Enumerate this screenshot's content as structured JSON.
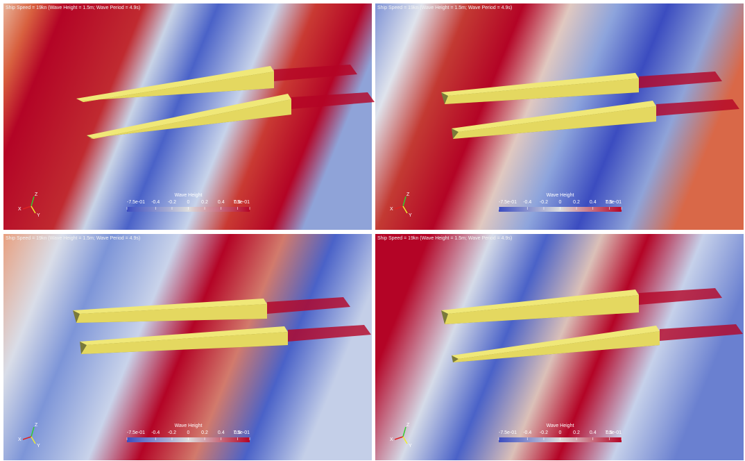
{
  "panels": [
    {
      "title": "Ship Speed = 19kn (Wave Height = 1.5m; Wave Period = 4.9s)",
      "axes": {
        "x": "X",
        "y": "Y",
        "z": "Z"
      },
      "colorbar": {
        "title": "Wave Height",
        "ticks": [
          "-7.5e-01",
          "-0.4",
          "-0.2",
          "0",
          "0.2",
          "0.4",
          "0.6",
          "7.5e-01"
        ]
      }
    },
    {
      "title": "Ship Speed = 19kn (Wave Height = 1.5m; Wave Period = 4.9s)",
      "axes": {
        "x": "X",
        "y": "Y",
        "z": "Z"
      },
      "colorbar": {
        "title": "Wave Height",
        "ticks": [
          "-7.5e-01",
          "-0.4",
          "-0.2",
          "0",
          "0.2",
          "0.4",
          "0.6",
          "7.5e-01"
        ]
      }
    },
    {
      "title": "Ship Speed = 19kn (Wave Height = 1.5m; Wave Period = 4.9s)",
      "axes": {
        "x": "X",
        "y": "Y",
        "z": "Z"
      },
      "colorbar": {
        "title": "Wave Height",
        "ticks": [
          "-7.5e-01",
          "-0.4",
          "-0.2",
          "0",
          "0.2",
          "0.4",
          "0.6",
          "7.5e-01"
        ]
      }
    },
    {
      "title": "Ship Speed = 19kn (Wave Height = 1.5m; Wave Period = 4.9s)",
      "axes": {
        "x": "X",
        "y": "Y",
        "z": "Z"
      },
      "colorbar": {
        "title": "Wave Height",
        "ticks": [
          "-7.5e-01",
          "-0.4",
          "-0.2",
          "0",
          "0.2",
          "0.4",
          "0.6",
          "7.5e-01"
        ]
      }
    }
  ]
}
